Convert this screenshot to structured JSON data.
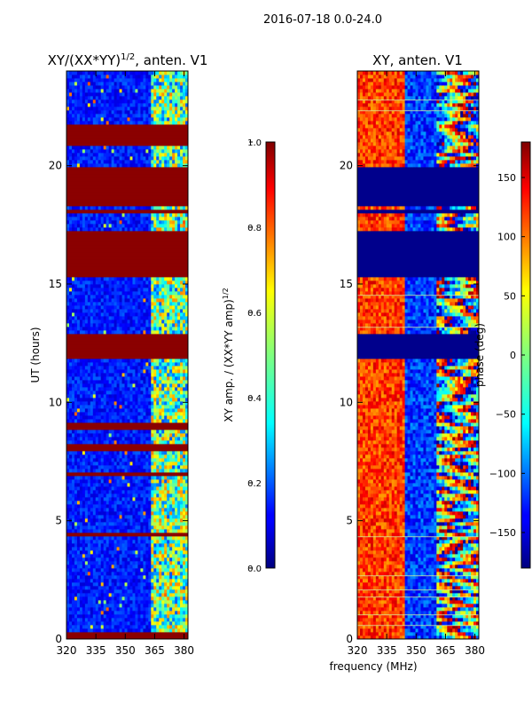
{
  "figure_title": "2016-07-18 0.0-24.0",
  "shared_xlabel": "frequency (MHz)",
  "chart_data": [
    {
      "type": "heatmap",
      "title_main": "XY/(XX*YY)",
      "title_sup": "1/2",
      "title_tail": ", anten. V1",
      "xlabel": "",
      "ylabel": "UT (hours)",
      "x_range": [
        320,
        382
      ],
      "y_range": [
        0,
        24
      ],
      "x_ticks": [
        "320",
        "335",
        "350",
        "365",
        "380"
      ],
      "x_tick_values": [
        320,
        335,
        350,
        365,
        380
      ],
      "y_ticks": [
        "0",
        "5",
        "10",
        "15",
        "20"
      ],
      "y_tick_values": [
        0,
        5,
        10,
        15,
        20
      ],
      "saturated_hour_ranges": [
        [
          0.0,
          0.25
        ],
        [
          4.3,
          4.55
        ],
        [
          6.9,
          7.1
        ],
        [
          8.0,
          8.2
        ],
        [
          8.9,
          9.2
        ],
        [
          11.8,
          12.9
        ],
        [
          15.3,
          17.2
        ],
        [
          17.95,
          18.1
        ],
        [
          18.25,
          19.9
        ],
        [
          20.8,
          21.7
        ]
      ],
      "colorbar": {
        "label_main": "XY amp. / (XX*YY amp)",
        "label_sup": "1/2",
        "range": [
          0.0,
          1.0
        ],
        "ticks": [
          "0.0",
          "0.2",
          "0.4",
          "0.6",
          "0.8",
          "1.0"
        ],
        "tick_values": [
          0.0,
          0.2,
          0.4,
          0.6,
          0.8,
          1.0
        ]
      }
    },
    {
      "type": "heatmap",
      "title": "XY, anten. V1",
      "xlabel": "frequency (MHz)",
      "ylabel": "",
      "x_range": [
        320,
        382
      ],
      "y_range": [
        0,
        24
      ],
      "x_ticks": [
        "320",
        "335",
        "350",
        "365",
        "380"
      ],
      "x_tick_values": [
        320,
        335,
        350,
        365,
        380
      ],
      "y_ticks": [
        "0",
        "5",
        "10",
        "15",
        "20"
      ],
      "y_tick_values": [
        0,
        5,
        10,
        15,
        20
      ],
      "flagged_hour_ranges": [
        [
          11.8,
          12.9
        ],
        [
          15.3,
          17.2
        ],
        [
          17.95,
          18.1
        ],
        [
          18.25,
          19.9
        ]
      ],
      "colorbar": {
        "label": "phase (deg)",
        "range": [
          -180,
          180
        ],
        "ticks": [
          "−150",
          "−100",
          "−50",
          "0",
          "50",
          "100",
          "150"
        ],
        "tick_values": [
          -150,
          -100,
          -50,
          0,
          50,
          100,
          150
        ]
      }
    }
  ],
  "colors": {
    "jet_low": "#00007f",
    "jet_high": "#7f0000",
    "saturated": "#8b0000"
  }
}
